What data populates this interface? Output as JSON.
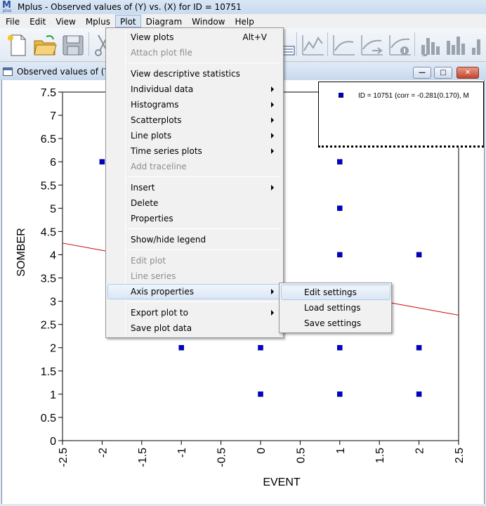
{
  "app": {
    "title": "Mplus - Observed values of  (Y) vs.  (X) for ID = 10751",
    "icon_letter": "M",
    "icon_subtext": "plus"
  },
  "menubar": [
    "File",
    "Edit",
    "View",
    "Mplus",
    "Plot",
    "Diagram",
    "Window",
    "Help"
  ],
  "active_menu": "Plot",
  "toolbar_icons": [
    "new-file-icon",
    "open-folder-icon",
    "save-icon",
    "cut-icon",
    "diagram-icon",
    "line-plot-icon",
    "plot-icon",
    "plot-arrow-icon",
    "plot-info-icon",
    "bar-chart-left-icon",
    "bar-chart-right-icon",
    "bar-chart-up-icon"
  ],
  "child_window": {
    "title": "Observed values of  (Y) v",
    "buttons": [
      "minimize",
      "restore",
      "close"
    ]
  },
  "plot_menu": {
    "items": [
      {
        "label": "View plots",
        "shortcut": "Alt+V",
        "enabled": true,
        "submenu": false
      },
      {
        "label": "Attach plot file",
        "enabled": false,
        "submenu": false
      },
      {
        "separator": true
      },
      {
        "label": "View descriptive statistics",
        "enabled": true,
        "submenu": false
      },
      {
        "label": "Individual data",
        "enabled": true,
        "submenu": true
      },
      {
        "label": "Histograms",
        "enabled": true,
        "submenu": true
      },
      {
        "label": "Scatterplots",
        "enabled": true,
        "submenu": true
      },
      {
        "label": "Line plots",
        "enabled": true,
        "submenu": true
      },
      {
        "label": "Time series plots",
        "enabled": true,
        "submenu": true
      },
      {
        "label": "Add traceline",
        "enabled": false,
        "submenu": false
      },
      {
        "separator": true
      },
      {
        "label": "Insert",
        "enabled": true,
        "submenu": true
      },
      {
        "label": "Delete",
        "enabled": true,
        "submenu": false
      },
      {
        "label": "Properties",
        "enabled": true,
        "submenu": false
      },
      {
        "separator": true
      },
      {
        "label": "Show/hide legend",
        "enabled": true,
        "submenu": false
      },
      {
        "separator": true
      },
      {
        "label": "Edit plot",
        "enabled": false,
        "submenu": false
      },
      {
        "label": "Line series",
        "enabled": false,
        "submenu": false
      },
      {
        "label": "Axis properties",
        "enabled": true,
        "submenu": true,
        "highlighted": true
      },
      {
        "separator": true
      },
      {
        "label": "Export plot to",
        "enabled": true,
        "submenu": true
      },
      {
        "label": "Save plot data",
        "enabled": true,
        "submenu": false
      }
    ]
  },
  "axis_submenu": {
    "items": [
      {
        "label": "Edit settings",
        "highlighted": true
      },
      {
        "label": "Load settings"
      },
      {
        "label": "Save settings"
      }
    ]
  },
  "legend": {
    "text": "ID = 10751 (corr = -0.281(0.170), M"
  },
  "colors": {
    "point": "#0000cc",
    "regression_line": "#cc0000",
    "highlight": "#dbe7f5"
  },
  "chart_data": {
    "type": "scatter",
    "xlabel": "EVENT",
    "ylabel": "SOMBER",
    "xlim": [
      -2.5,
      2.5
    ],
    "ylim": [
      0,
      7.5
    ],
    "xticks": [
      "-2.5",
      "-2",
      "-1.5",
      "-1",
      "-0.5",
      "0",
      "0.5",
      "1",
      "1.5",
      "2",
      "2.5"
    ],
    "yticks": [
      "0",
      "0.5",
      "1",
      "1.5",
      "2",
      "2.5",
      "3",
      "3.5",
      "4",
      "4.5",
      "5",
      "5.5",
      "6",
      "6.5",
      "7",
      "7.5"
    ],
    "points": [
      {
        "x": -2,
        "y": 6
      },
      {
        "x": 1,
        "y": 7.5
      },
      {
        "x": 1,
        "y": 6
      },
      {
        "x": 1,
        "y": 5
      },
      {
        "x": 1,
        "y": 4
      },
      {
        "x": 2,
        "y": 4
      },
      {
        "x": -1,
        "y": 2
      },
      {
        "x": 0,
        "y": 2
      },
      {
        "x": 1,
        "y": 2
      },
      {
        "x": 2,
        "y": 2
      },
      {
        "x": 0,
        "y": 1
      },
      {
        "x": 1,
        "y": 1
      },
      {
        "x": 2,
        "y": 1
      }
    ],
    "regression_line": {
      "x": [
        -2.5,
        2.5
      ],
      "y": [
        4.25,
        2.7
      ]
    },
    "legend": "top-right",
    "grid": false
  }
}
